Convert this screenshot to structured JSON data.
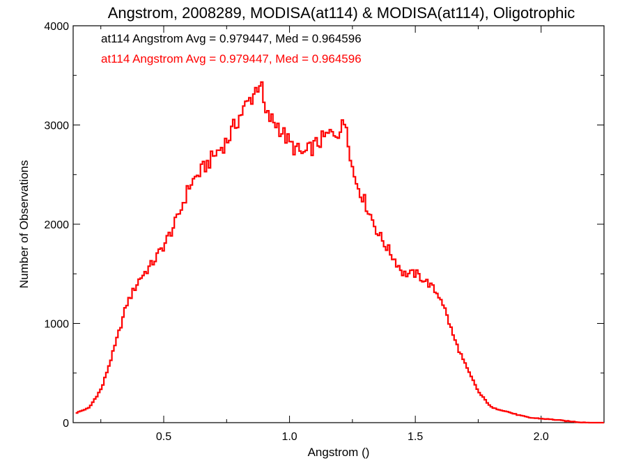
{
  "chart_data": {
    "type": "histogram",
    "title": "Angstrom, 2008289, MODISA(at114) & MODISA(at114), Oligotrophic",
    "xlabel": "Angstrom ()",
    "ylabel": "Number of Observations",
    "xlim": [
      0.14,
      2.25
    ],
    "ylim": [
      0,
      4000
    ],
    "xticks": [
      0.5,
      1.0,
      1.5,
      2.0
    ],
    "xtick_labels": [
      "0.5",
      "1.0",
      "1.5",
      "2.0"
    ],
    "yticks": [
      0,
      1000,
      2000,
      3000,
      4000
    ],
    "ytick_labels": [
      "0",
      "1000",
      "2000",
      "3000",
      "4000"
    ],
    "grid": false,
    "annotations": [
      {
        "text": "at114 Angstrom Avg = 0.979447, Med = 0.964596",
        "color": "#000000"
      },
      {
        "text": "at114 Angstrom Avg = 0.979447, Med = 0.964596",
        "color": "#ff0000"
      }
    ],
    "series": [
      {
        "color": "#ff0000",
        "x": [
          0.15,
          0.2,
          0.25,
          0.3,
          0.35,
          0.4,
          0.45,
          0.5,
          0.55,
          0.6,
          0.65,
          0.7,
          0.75,
          0.8,
          0.85,
          0.88,
          0.9,
          0.95,
          1.0,
          1.05,
          1.1,
          1.15,
          1.2,
          1.22,
          1.25,
          1.3,
          1.35,
          1.4,
          1.45,
          1.5,
          1.55,
          1.6,
          1.65,
          1.7,
          1.75,
          1.8,
          1.85,
          1.9,
          1.95,
          2.0,
          2.05,
          2.1,
          2.15,
          2.2
        ],
        "y": [
          100,
          150,
          350,
          750,
          1200,
          1450,
          1600,
          1800,
          2050,
          2400,
          2550,
          2700,
          2850,
          3100,
          3300,
          3450,
          3100,
          3000,
          2800,
          2700,
          2800,
          2900,
          2950,
          3050,
          2500,
          2200,
          1900,
          1700,
          1500,
          1500,
          1400,
          1250,
          850,
          550,
          300,
          150,
          120,
          80,
          50,
          40,
          30,
          15,
          5,
          0
        ]
      }
    ]
  }
}
